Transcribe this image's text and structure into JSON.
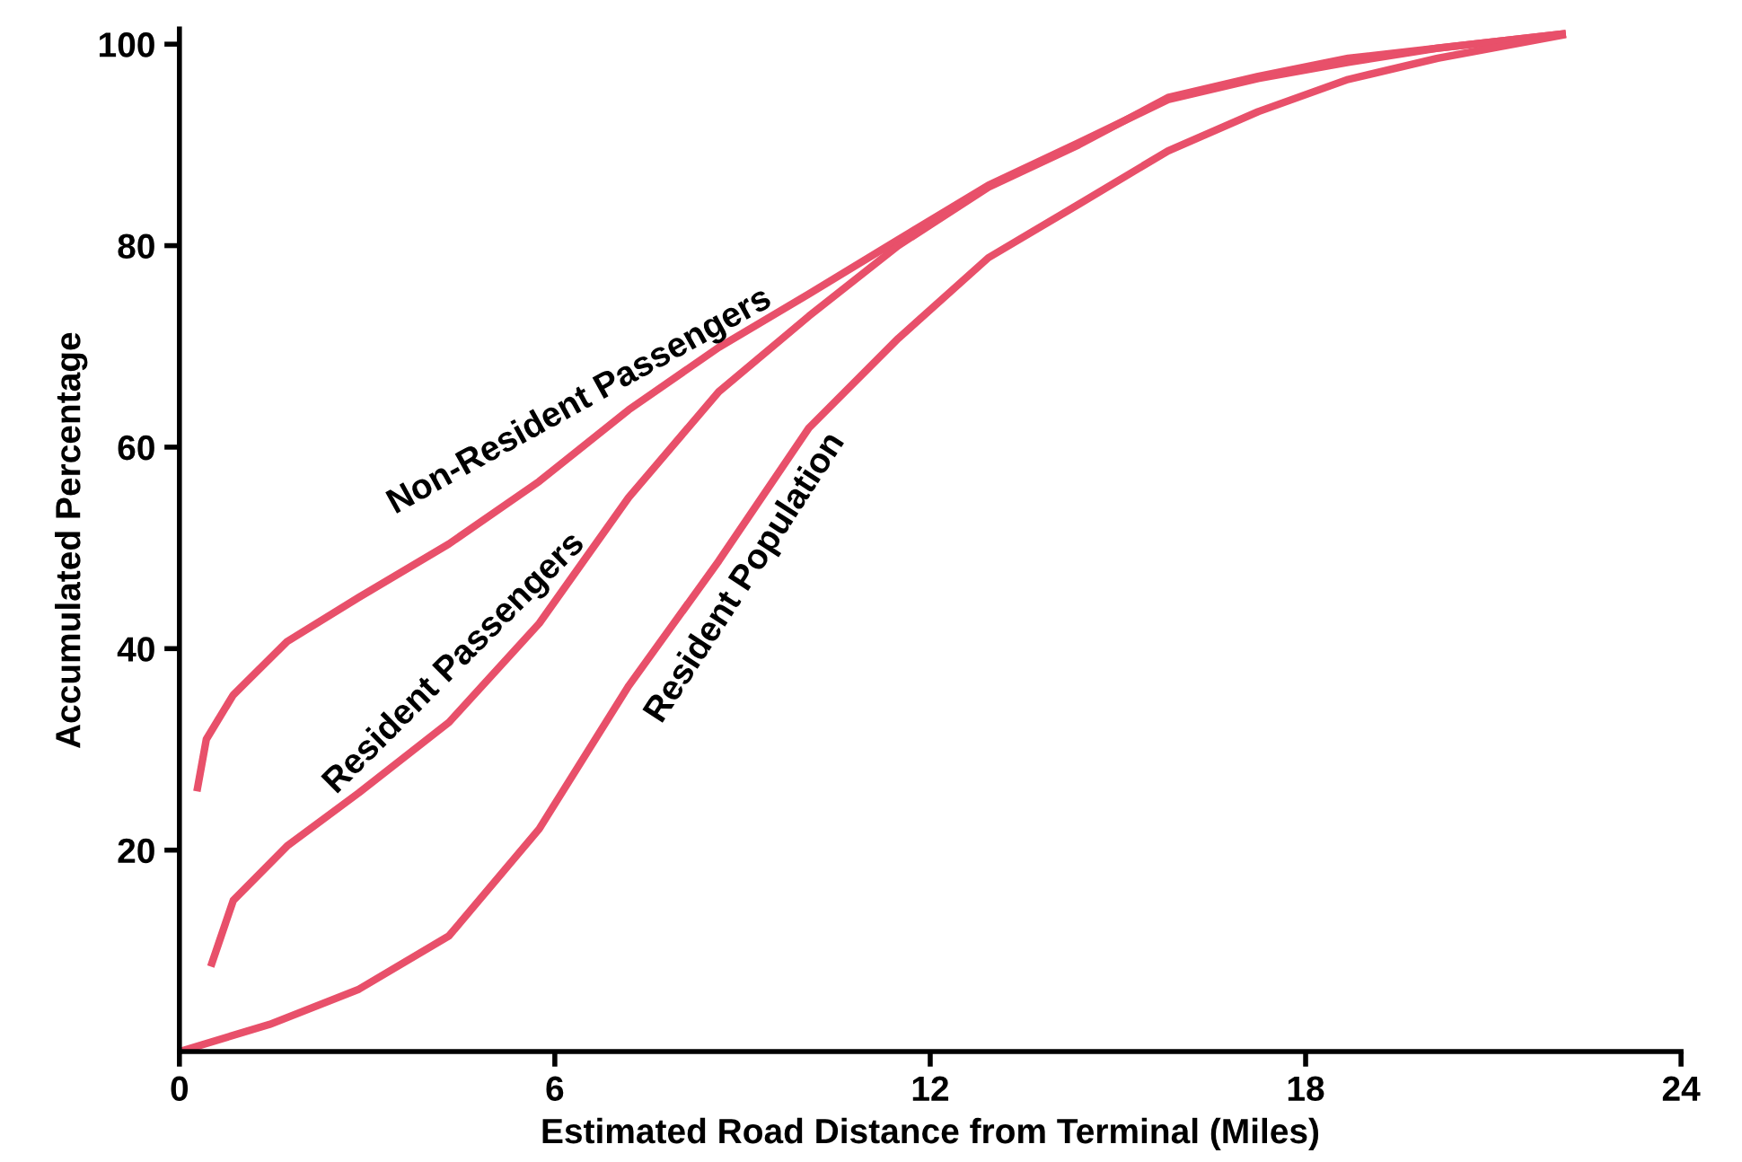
{
  "chart_data": {
    "type": "line",
    "xlabel": "Estimated Road Distance from Terminal (Miles)",
    "ylabel": "Accumulated Percentage",
    "xlim": [
      0,
      24
    ],
    "xticks": [
      0,
      6,
      12,
      18,
      24
    ],
    "ylim": [
      0,
      101.5
    ],
    "yticks": [
      20,
      40,
      60,
      80,
      100
    ],
    "grid": false,
    "legend": false,
    "marker": "none",
    "line_style": "solid",
    "series": [
      {
        "name": "Non-Resident Passengers",
        "color": "#e8506a",
        "x": [
          0.29,
          0.43,
          0.86,
          1.72,
          2.87,
          4.31,
          5.75,
          7.18,
          8.62,
          10.06,
          11.49,
          12.93,
          14.37,
          15.8,
          17.24,
          18.68,
          20.11,
          22.1
        ],
        "values": [
          26.2,
          31,
          35.4,
          40.7,
          45.1,
          50.4,
          56.6,
          63.7,
          69.9,
          75.2,
          80.6,
          86,
          90.2,
          94.5,
          96.6,
          98.2,
          99.6,
          101
        ]
      },
      {
        "name": "Resident Passengers",
        "color": "#e8506a",
        "x": [
          0.52,
          0.86,
          1.72,
          2.87,
          4.31,
          5.75,
          7.18,
          8.62,
          10.06,
          11.49,
          12.93,
          14.37,
          15.8,
          17.24,
          18.68,
          20.11,
          22.1
        ],
        "values": [
          8.8,
          15,
          20.4,
          25.7,
          32.7,
          42.5,
          55,
          65.5,
          73,
          80,
          85.8,
          90,
          94.7,
          96.8,
          98.6,
          99.6,
          101
        ]
      },
      {
        "name": "Resident Population",
        "color": "#e8506a",
        "x": [
          0,
          1.44,
          2.87,
          4.31,
          5.75,
          7.18,
          8.62,
          10.06,
          11.49,
          12.93,
          14.37,
          15.8,
          17.24,
          18.68,
          20.11,
          22.1
        ],
        "values": [
          0,
          2.7,
          6.2,
          11.5,
          22.1,
          36.3,
          48.7,
          61.9,
          70.8,
          78.8,
          84.1,
          89.4,
          93.3,
          96.5,
          98.6,
          100.9
        ]
      }
    ]
  }
}
